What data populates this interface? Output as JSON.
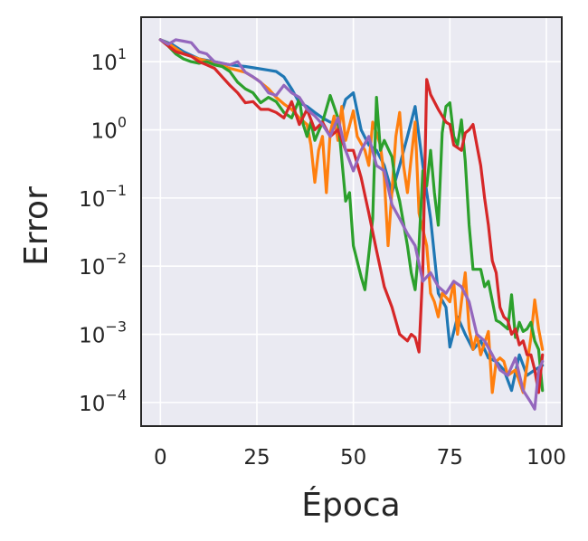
{
  "chart_data": {
    "type": "line",
    "xlabel": "Época",
    "ylabel": "Error",
    "xlim": [
      -5,
      104
    ],
    "ylim": [
      4.5e-05,
      45
    ],
    "y_scale": "log",
    "grid": true,
    "legend": "none",
    "x_ticks": [
      0,
      25,
      50,
      75,
      100
    ],
    "x_tick_labels": [
      "0",
      "25",
      "50",
      "75",
      "100"
    ],
    "y_ticks": [
      0.0001,
      0.001,
      0.01,
      0.1,
      1,
      10
    ],
    "y_tick_labels": [
      {
        "base": "10",
        "exp": "−4"
      },
      {
        "base": "10",
        "exp": "−3"
      },
      {
        "base": "10",
        "exp": "−2"
      },
      {
        "base": "10",
        "exp": "−1"
      },
      {
        "base": "10",
        "exp": "0"
      },
      {
        "base": "10",
        "exp": "1"
      }
    ],
    "colors": {
      "background": "#eaeaf2",
      "grid": "#ffffff",
      "frame": "#262626"
    },
    "series": [
      {
        "color": "#1f77b4",
        "points": [
          [
            0,
            21
          ],
          [
            3,
            18
          ],
          [
            6,
            14
          ],
          [
            10,
            11
          ],
          [
            14,
            10
          ],
          [
            18,
            9
          ],
          [
            22,
            8.5
          ],
          [
            25,
            8
          ],
          [
            28,
            7.5
          ],
          [
            30,
            7.2
          ],
          [
            32,
            6
          ],
          [
            34,
            4
          ],
          [
            36,
            2.5
          ],
          [
            38,
            2.2
          ],
          [
            40,
            1.8
          ],
          [
            42,
            1.5
          ],
          [
            44,
            1.3
          ],
          [
            46,
            1.2
          ],
          [
            48,
            2.8
          ],
          [
            50,
            3.5
          ],
          [
            52,
            1.0
          ],
          [
            54,
            0.6
          ],
          [
            56,
            0.5
          ],
          [
            58,
            0.3
          ],
          [
            60,
            0.12
          ],
          [
            62,
            0.3
          ],
          [
            64,
            0.8
          ],
          [
            66,
            2.2
          ],
          [
            68,
            0.3
          ],
          [
            70,
            0.05
          ],
          [
            72,
            0.004
          ],
          [
            74,
            0.0025
          ],
          [
            75,
            0.00065
          ],
          [
            77,
            0.0018
          ],
          [
            79,
            0.001
          ],
          [
            81,
            0.0006
          ],
          [
            83,
            0.0008
          ],
          [
            85,
            0.00045
          ],
          [
            87,
            0.0004
          ],
          [
            89,
            0.0003
          ],
          [
            91,
            0.00015
          ],
          [
            93,
            0.0005
          ],
          [
            95,
            0.00025
          ],
          [
            97,
            0.0003
          ],
          [
            99,
            0.00035
          ]
        ]
      },
      {
        "color": "#ff7f0e",
        "points": [
          [
            0,
            21
          ],
          [
            3,
            17
          ],
          [
            6,
            13
          ],
          [
            10,
            11
          ],
          [
            14,
            9.5
          ],
          [
            18,
            8
          ],
          [
            22,
            7
          ],
          [
            25,
            5.5
          ],
          [
            28,
            4
          ],
          [
            30,
            3
          ],
          [
            32,
            2.4
          ],
          [
            34,
            2.0
          ],
          [
            36,
            1.5
          ],
          [
            38,
            1.2
          ],
          [
            39,
            0.6
          ],
          [
            40,
            0.17
          ],
          [
            41,
            0.5
          ],
          [
            42,
            0.8
          ],
          [
            43,
            0.12
          ],
          [
            44,
            0.9
          ],
          [
            45,
            1.6
          ],
          [
            46,
            0.7
          ],
          [
            47,
            2.2
          ],
          [
            48,
            0.7
          ],
          [
            50,
            1.9
          ],
          [
            51,
            0.8
          ],
          [
            53,
            0.5
          ],
          [
            54,
            0.3
          ],
          [
            55,
            1.3
          ],
          [
            57,
            0.6
          ],
          [
            58,
            0.2
          ],
          [
            59,
            0.02
          ],
          [
            61,
            0.8
          ],
          [
            62,
            1.8
          ],
          [
            63,
            0.3
          ],
          [
            64,
            0.12
          ],
          [
            66,
            1.3
          ],
          [
            67,
            0.06
          ],
          [
            69,
            0.02
          ],
          [
            70,
            0.004
          ],
          [
            71,
            0.003
          ],
          [
            72,
            0.0018
          ],
          [
            73,
            0.004
          ],
          [
            74,
            0.0035
          ],
          [
            75,
            0.003
          ],
          [
            76,
            0.006
          ],
          [
            77,
            0.001
          ],
          [
            78,
            0.003
          ],
          [
            79,
            0.008
          ],
          [
            80,
            0.0012
          ],
          [
            81,
            0.0006
          ],
          [
            82,
            0.001
          ],
          [
            83,
            0.0005
          ],
          [
            85,
            0.0011
          ],
          [
            86,
            0.00014
          ],
          [
            87,
            0.0004
          ],
          [
            88,
            0.00045
          ],
          [
            89,
            0.0004
          ],
          [
            90,
            0.00025
          ],
          [
            92,
            0.0003
          ],
          [
            94,
            0.00014
          ],
          [
            96,
            0.0009
          ],
          [
            97,
            0.0032
          ],
          [
            98,
            0.0012
          ],
          [
            99,
            0.0006
          ]
        ]
      },
      {
        "color": "#2ca02c",
        "points": [
          [
            0,
            21
          ],
          [
            2,
            17
          ],
          [
            4,
            13
          ],
          [
            6,
            11
          ],
          [
            8,
            10
          ],
          [
            10,
            9.5
          ],
          [
            12,
            10
          ],
          [
            14,
            9
          ],
          [
            16,
            8.5
          ],
          [
            18,
            7.2
          ],
          [
            20,
            5
          ],
          [
            22,
            4
          ],
          [
            24,
            3.5
          ],
          [
            26,
            2.5
          ],
          [
            28,
            3
          ],
          [
            30,
            2.6
          ],
          [
            32,
            1.8
          ],
          [
            34,
            1.5
          ],
          [
            36,
            2.8
          ],
          [
            37,
            1.2
          ],
          [
            38,
            0.8
          ],
          [
            39,
            1.3
          ],
          [
            40,
            0.7
          ],
          [
            42,
            1.3
          ],
          [
            44,
            3.2
          ],
          [
            46,
            1.5
          ],
          [
            48,
            0.09
          ],
          [
            49,
            0.12
          ],
          [
            50,
            0.02
          ],
          [
            52,
            0.007
          ],
          [
            53,
            0.0045
          ],
          [
            55,
            0.05
          ],
          [
            56,
            3.0
          ],
          [
            57,
            0.5
          ],
          [
            58,
            0.7
          ],
          [
            60,
            0.4
          ],
          [
            61,
            0.15
          ],
          [
            62,
            0.09
          ],
          [
            64,
            0.02
          ],
          [
            65,
            0.008
          ],
          [
            66,
            0.0045
          ],
          [
            67,
            0.02
          ],
          [
            68,
            0.25
          ],
          [
            69,
            0.15
          ],
          [
            70,
            0.5
          ],
          [
            71,
            0.12
          ],
          [
            72,
            0.04
          ],
          [
            73,
            0.9
          ],
          [
            74,
            2.2
          ],
          [
            75,
            2.5
          ],
          [
            76,
            0.8
          ],
          [
            77,
            0.6
          ],
          [
            78,
            1.4
          ],
          [
            79,
            0.35
          ],
          [
            80,
            0.04
          ],
          [
            81,
            0.009
          ],
          [
            83,
            0.009
          ],
          [
            84,
            0.005
          ],
          [
            85,
            0.006
          ],
          [
            87,
            0.0016
          ],
          [
            88,
            0.0015
          ],
          [
            90,
            0.0012
          ],
          [
            91,
            0.0038
          ],
          [
            92,
            0.0009
          ],
          [
            93,
            0.0015
          ],
          [
            94,
            0.0011
          ],
          [
            95,
            0.0012
          ],
          [
            96,
            0.0015
          ],
          [
            97,
            0.0008
          ],
          [
            98,
            0.0006
          ],
          [
            99,
            0.00015
          ]
        ]
      },
      {
        "color": "#d62728",
        "points": [
          [
            0,
            21
          ],
          [
            2,
            17
          ],
          [
            4,
            14
          ],
          [
            6,
            13
          ],
          [
            8,
            12
          ],
          [
            10,
            10
          ],
          [
            12,
            9
          ],
          [
            14,
            8
          ],
          [
            16,
            6
          ],
          [
            18,
            4.5
          ],
          [
            20,
            3.5
          ],
          [
            22,
            2.5
          ],
          [
            24,
            2.6
          ],
          [
            26,
            2.0
          ],
          [
            28,
            2.0
          ],
          [
            30,
            1.8
          ],
          [
            32,
            1.5
          ],
          [
            34,
            2.6
          ],
          [
            36,
            1.2
          ],
          [
            38,
            2.0
          ],
          [
            40,
            1.0
          ],
          [
            42,
            1.3
          ],
          [
            44,
            0.8
          ],
          [
            46,
            1.0
          ],
          [
            48,
            0.5
          ],
          [
            50,
            0.5
          ],
          [
            52,
            0.2
          ],
          [
            54,
            0.06
          ],
          [
            56,
            0.017
          ],
          [
            58,
            0.005
          ],
          [
            60,
            0.0025
          ],
          [
            62,
            0.001
          ],
          [
            64,
            0.0008
          ],
          [
            65,
            0.001
          ],
          [
            66,
            0.0009
          ],
          [
            67,
            0.00055
          ],
          [
            68,
            0.009
          ],
          [
            69,
            5.5
          ],
          [
            70,
            3.3
          ],
          [
            72,
            2.0
          ],
          [
            74,
            1.3
          ],
          [
            75,
            1.2
          ],
          [
            76,
            0.6
          ],
          [
            78,
            0.5
          ],
          [
            79,
            0.9
          ],
          [
            80,
            1.0
          ],
          [
            81,
            1.2
          ],
          [
            82,
            0.6
          ],
          [
            83,
            0.3
          ],
          [
            84,
            0.1
          ],
          [
            85,
            0.04
          ],
          [
            86,
            0.012
          ],
          [
            87,
            0.008
          ],
          [
            88,
            0.0025
          ],
          [
            89,
            0.0018
          ],
          [
            90,
            0.0016
          ],
          [
            91,
            0.001
          ],
          [
            92,
            0.0012
          ],
          [
            93,
            0.0007
          ],
          [
            94,
            0.0008
          ],
          [
            95,
            0.0005
          ],
          [
            96,
            0.0005
          ],
          [
            97,
            0.0003
          ],
          [
            98,
            0.00014
          ],
          [
            99,
            0.0005
          ]
        ]
      },
      {
        "color": "#9467bd",
        "points": [
          [
            0,
            21
          ],
          [
            2,
            18
          ],
          [
            4,
            21
          ],
          [
            6,
            20
          ],
          [
            8,
            19
          ],
          [
            10,
            14
          ],
          [
            12,
            13
          ],
          [
            14,
            10
          ],
          [
            16,
            9.5
          ],
          [
            18,
            9
          ],
          [
            20,
            10
          ],
          [
            22,
            7
          ],
          [
            24,
            6
          ],
          [
            26,
            5
          ],
          [
            28,
            3.5
          ],
          [
            30,
            3.2
          ],
          [
            32,
            4.5
          ],
          [
            34,
            3.5
          ],
          [
            36,
            3.0
          ],
          [
            38,
            2.0
          ],
          [
            40,
            1.6
          ],
          [
            42,
            1.2
          ],
          [
            44,
            0.8
          ],
          [
            46,
            1.5
          ],
          [
            48,
            0.5
          ],
          [
            50,
            0.25
          ],
          [
            52,
            0.5
          ],
          [
            54,
            0.8
          ],
          [
            56,
            0.3
          ],
          [
            58,
            0.25
          ],
          [
            60,
            0.08
          ],
          [
            62,
            0.05
          ],
          [
            64,
            0.03
          ],
          [
            66,
            0.02
          ],
          [
            68,
            0.006
          ],
          [
            70,
            0.008
          ],
          [
            72,
            0.005
          ],
          [
            74,
            0.004
          ],
          [
            76,
            0.006
          ],
          [
            78,
            0.005
          ],
          [
            80,
            0.003
          ],
          [
            82,
            0.001
          ],
          [
            84,
            0.0008
          ],
          [
            86,
            0.0005
          ],
          [
            88,
            0.0003
          ],
          [
            90,
            0.00025
          ],
          [
            92,
            0.00045
          ],
          [
            94,
            0.00015
          ],
          [
            96,
            0.0001
          ],
          [
            97,
            8e-05
          ],
          [
            98,
            0.0003
          ],
          [
            99,
            0.0004
          ]
        ]
      }
    ]
  }
}
